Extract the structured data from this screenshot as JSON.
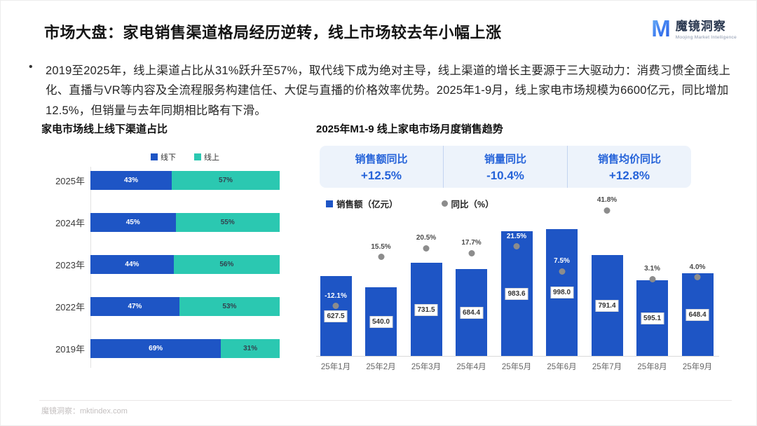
{
  "header": {
    "title": "市场大盘：家电销售渠道格局经历逆转，线上市场较去年小幅上涨",
    "logo": {
      "icon": "M",
      "name": "魔镜洞察",
      "subtitle": "Moojing Market Intelligence"
    }
  },
  "intro": {
    "bullet": "•",
    "text": "2019至2025年，线上渠道占比从31%跃升至57%，取代线下成为绝对主导，线上渠道的增长主要源于三大驱动力：消费习惯全面线上化、直播与VR等内容及全流程服务构建信任、大促与直播的价格效率优势。2025年1-9月，线上家电市场规模为6600亿元，同比增加12.5%，但销量与去年同期相比略有下滑。"
  },
  "colors": {
    "offline_blue": "#1E55C5",
    "online_teal": "#2BC8B1",
    "kpi_blue": "#2563D9",
    "dot_gray": "#8C8C8C",
    "teal_label_text": "#33424f"
  },
  "chart_data": [
    {
      "type": "bar",
      "subtype": "horizontal_stacked_100pct",
      "title": "家电市场线上线下渠道占比",
      "categories": [
        "2025年",
        "2024年",
        "2023年",
        "2022年",
        "2019年"
      ],
      "series": [
        {
          "name": "线下",
          "color": "#1E55C5",
          "values": [
            43,
            45,
            44,
            47,
            69
          ]
        },
        {
          "name": "线上",
          "color": "#2BC8B1",
          "values": [
            57,
            55,
            56,
            53,
            31
          ]
        }
      ],
      "value_suffix": "%",
      "legend_position": "top",
      "grid": false
    },
    {
      "type": "bar",
      "subtype": "bar_with_scatter_secondary_axis",
      "title": "2025年M1-9 线上家电市场月度销售趋势",
      "kpis": [
        {
          "label": "销售额同比",
          "value": "+12.5%"
        },
        {
          "label": "销量同比",
          "value": "-10.4%"
        },
        {
          "label": "销售均价同比",
          "value": "+12.8%"
        }
      ],
      "categories": [
        "25年1月",
        "25年2月",
        "25年3月",
        "25年4月",
        "25年5月",
        "25年6月",
        "25年7月",
        "25年8月",
        "25年9月"
      ],
      "series": [
        {
          "name": "销售额（亿元）",
          "type": "bar",
          "color": "#1E55C5",
          "values": [
            627.5,
            540.0,
            731.5,
            684.4,
            983.6,
            998.0,
            791.4,
            595.1,
            648.4
          ]
        },
        {
          "name": "同比（%）",
          "type": "scatter",
          "color": "#8C8C8C",
          "values": [
            -12.1,
            15.5,
            20.5,
            17.7,
            21.5,
            7.5,
            41.8,
            3.1,
            4.0
          ]
        }
      ],
      "legend_position": "top-left",
      "grid": false
    }
  ],
  "footer": {
    "text": "魔镜洞察：mktindex.com"
  }
}
